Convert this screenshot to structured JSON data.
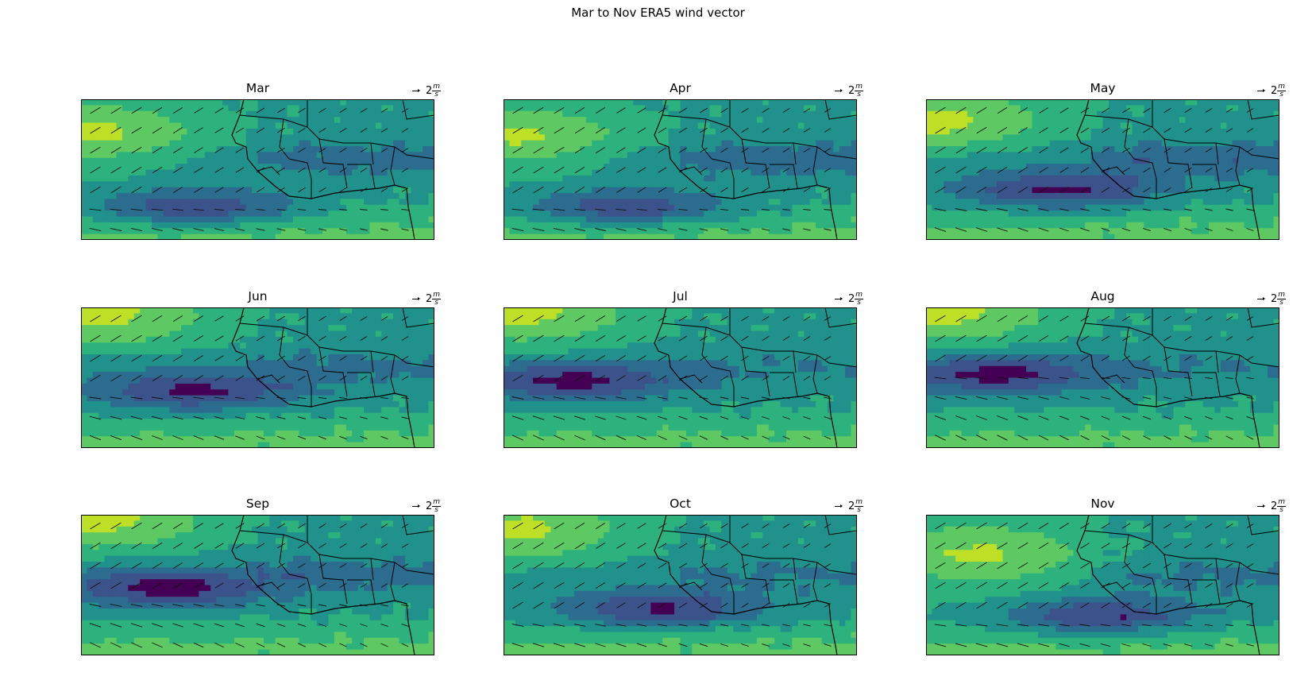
{
  "figure": {
    "title": "Mar to Nov ERA5 wind vector",
    "quiver_key_value": "2",
    "quiver_key_unit_num": "m",
    "quiver_key_unit_den": "s"
  },
  "chart_data": {
    "type": "heatmap",
    "colormap": [
      "#440154",
      "#3b528b",
      "#2c6c8e",
      "#21918c",
      "#2db27d",
      "#5ec962",
      "#bddf26"
    ],
    "panels": [
      {
        "title": "Mar",
        "jet_lat": -0.55,
        "jet_lon": -0.35,
        "high_lat": 0.5,
        "high_lon": -0.95,
        "band_strength": 0.7
      },
      {
        "title": "Apr",
        "jet_lat": -0.55,
        "jet_lon": -0.3,
        "high_lat": 0.45,
        "high_lon": -0.95,
        "band_strength": 0.8
      },
      {
        "title": "May",
        "jet_lat": -0.3,
        "jet_lon": -0.25,
        "high_lat": 0.7,
        "high_lon": -0.95,
        "band_strength": 0.9
      },
      {
        "title": "Jun",
        "jet_lat": -0.2,
        "jet_lon": -0.35,
        "high_lat": 0.9,
        "high_lon": -0.9,
        "band_strength": 0.6
      },
      {
        "title": "Jul",
        "jet_lat": -0.05,
        "jet_lon": -0.6,
        "high_lat": 0.95,
        "high_lon": -0.9,
        "band_strength": 0.4
      },
      {
        "title": "Aug",
        "jet_lat": 0.05,
        "jet_lon": -0.6,
        "high_lat": 0.95,
        "high_lon": -0.9,
        "band_strength": 0.4
      },
      {
        "title": "Sep",
        "jet_lat": -0.05,
        "jet_lon": -0.5,
        "high_lat": 0.95,
        "high_lon": -0.9,
        "band_strength": 0.7
      },
      {
        "title": "Oct",
        "jet_lat": -0.35,
        "jet_lon": -0.1,
        "high_lat": 0.8,
        "high_lon": -0.95,
        "band_strength": 0.5
      },
      {
        "title": "Nov",
        "jet_lat": -0.45,
        "jet_lon": 0.0,
        "high_lat": 0.4,
        "high_lon": -0.7,
        "band_strength": 0.6
      }
    ]
  }
}
